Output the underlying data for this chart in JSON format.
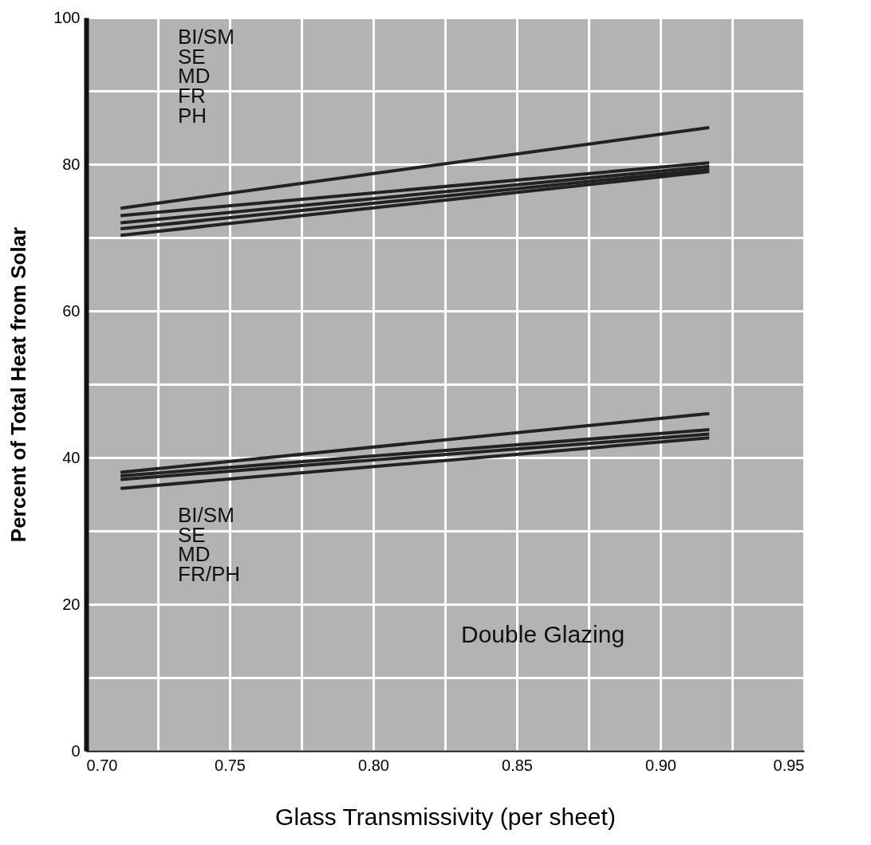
{
  "chart_data": {
    "type": "line",
    "xlabel": "Glass Transmissivity (per sheet)",
    "ylabel": "Percent of Total Heat from Solar",
    "x": [
      0.712,
      0.917
    ],
    "series": [
      {
        "color": "#222222",
        "values": [
          74,
          85
        ]
      },
      {
        "color": "#222222",
        "values": [
          73,
          80.2
        ]
      },
      {
        "color": "#222222",
        "values": [
          72,
          79.7
        ]
      },
      {
        "color": "#222222",
        "values": [
          71.2,
          79.3
        ]
      },
      {
        "color": "#222222",
        "values": [
          70.3,
          79
        ]
      },
      {
        "color": "#222222",
        "values": [
          38,
          46
        ]
      },
      {
        "color": "#222222",
        "values": [
          37.5,
          43.8
        ]
      },
      {
        "color": "#222222",
        "values": [
          37,
          43.2
        ]
      },
      {
        "color": "#222222",
        "values": [
          35.8,
          42.7
        ]
      }
    ],
    "xlim": [
      0.7,
      0.95
    ],
    "xticks": [
      {
        "value": 0.7,
        "label": "0.70"
      },
      {
        "value": 0.725,
        "label": null
      },
      0.75,
      {
        "value": 0.775,
        "label": null
      },
      {
        "value": 0.8,
        "label": "0.80"
      },
      {
        "value": 0.825,
        "label": null
      },
      0.85,
      {
        "value": 0.875,
        "label": null
      },
      {
        "value": 0.9,
        "label": "0.90"
      },
      {
        "value": 0.925,
        "label": null
      },
      0.95
    ],
    "ylim": [
      0,
      100
    ],
    "yticks": [
      0,
      {
        "value": 10,
        "label": null
      },
      20,
      {
        "value": 30,
        "label": null
      },
      40,
      {
        "value": 50,
        "label": null
      },
      60,
      {
        "value": 70,
        "label": null
      },
      80,
      {
        "value": 90,
        "label": null
      },
      100
    ],
    "grid": true,
    "legend": false,
    "marker": "none",
    "line_style": "solid",
    "annotations": [
      "BI/SM\nSE\nMD\nFR\nPH",
      "BI/SM\nSE\nMD\nFR/PH",
      "Double Glazing"
    ]
  }
}
